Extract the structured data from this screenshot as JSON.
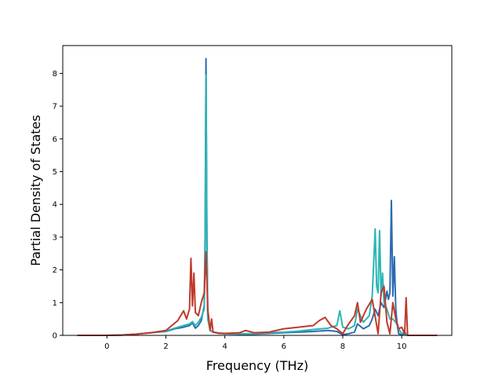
{
  "chart_data": {
    "type": "line",
    "title": "",
    "xlabel": "Frequency (THz)",
    "ylabel": "Partial Density of States",
    "xlim": [
      -1.5,
      11.7
    ],
    "ylim": [
      0,
      8.85
    ],
    "xticks": [
      0,
      2,
      4,
      6,
      8,
      10
    ],
    "yticks": [
      0,
      1,
      2,
      3,
      4,
      5,
      6,
      7,
      8
    ],
    "grid": false,
    "legend": "none",
    "series": [
      {
        "color": "#2b6cb0",
        "x": [
          -1.0,
          0.0,
          0.5,
          1.0,
          1.5,
          2.0,
          2.3,
          2.6,
          2.8,
          2.9,
          3.0,
          3.1,
          3.2,
          3.3,
          3.33,
          3.36,
          3.39,
          3.42,
          3.5,
          3.6,
          3.8,
          4.0,
          4.5,
          5.0,
          5.5,
          6.0,
          6.5,
          7.0,
          7.5,
          7.8,
          8.0,
          8.2,
          8.4,
          8.5,
          8.7,
          8.9,
          9.0,
          9.1,
          9.2,
          9.3,
          9.4,
          9.5,
          9.55,
          9.6,
          9.65,
          9.7,
          9.75,
          9.8,
          9.85,
          9.9,
          10.0,
          10.1,
          10.2,
          11.2
        ],
        "values": [
          0.0,
          0.0,
          0.01,
          0.04,
          0.08,
          0.12,
          0.2,
          0.25,
          0.3,
          0.38,
          0.22,
          0.3,
          0.45,
          0.9,
          3.0,
          8.45,
          3.2,
          0.6,
          0.15,
          0.1,
          0.06,
          0.05,
          0.04,
          0.04,
          0.06,
          0.08,
          0.1,
          0.12,
          0.15,
          0.12,
          0.02,
          0.05,
          0.1,
          0.35,
          0.2,
          0.3,
          0.5,
          0.8,
          0.6,
          1.0,
          0.85,
          1.35,
          1.1,
          1.3,
          4.12,
          1.2,
          2.4,
          0.8,
          0.3,
          0.05,
          0.02,
          0.05,
          0.0,
          0.0
        ]
      },
      {
        "color": "#2cb5b5",
        "x": [
          -1.0,
          0.0,
          0.5,
          1.0,
          1.5,
          2.0,
          2.3,
          2.6,
          2.8,
          2.9,
          3.0,
          3.1,
          3.2,
          3.3,
          3.33,
          3.36,
          3.39,
          3.42,
          3.5,
          3.6,
          3.8,
          4.0,
          4.5,
          5.0,
          5.5,
          6.0,
          6.5,
          7.0,
          7.5,
          7.8,
          7.9,
          8.0,
          8.2,
          8.4,
          8.5,
          8.7,
          8.9,
          9.0,
          9.1,
          9.15,
          9.2,
          9.25,
          9.3,
          9.35,
          9.4,
          9.5,
          9.6,
          9.7,
          9.8,
          9.9,
          10.0,
          10.1,
          10.2,
          11.2
        ],
        "values": [
          0.0,
          0.0,
          0.01,
          0.04,
          0.08,
          0.13,
          0.22,
          0.3,
          0.35,
          0.42,
          0.3,
          0.4,
          0.55,
          0.8,
          2.4,
          7.95,
          2.8,
          0.5,
          0.15,
          0.1,
          0.07,
          0.06,
          0.05,
          0.05,
          0.08,
          0.1,
          0.13,
          0.18,
          0.22,
          0.3,
          0.75,
          0.25,
          0.2,
          0.3,
          0.8,
          0.4,
          0.6,
          1.2,
          3.25,
          1.5,
          1.3,
          3.2,
          1.2,
          1.9,
          1.0,
          0.8,
          0.5,
          0.5,
          0.4,
          0.2,
          0.05,
          0.1,
          0.0,
          0.0
        ]
      },
      {
        "color": "#c0392b",
        "x": [
          -1.0,
          0.0,
          0.5,
          1.0,
          1.5,
          2.0,
          2.2,
          2.4,
          2.6,
          2.7,
          2.8,
          2.85,
          2.9,
          2.95,
          3.0,
          3.1,
          3.2,
          3.3,
          3.36,
          3.42,
          3.5,
          3.55,
          3.6,
          3.8,
          4.0,
          4.5,
          4.7,
          5.0,
          5.5,
          6.0,
          6.5,
          7.0,
          7.2,
          7.4,
          7.6,
          7.8,
          8.0,
          8.2,
          8.4,
          8.5,
          8.6,
          8.8,
          9.0,
          9.2,
          9.3,
          9.4,
          9.5,
          9.6,
          9.7,
          9.8,
          9.9,
          10.0,
          10.1,
          10.15,
          10.2,
          11.2
        ],
        "values": [
          0.0,
          0.0,
          0.01,
          0.04,
          0.08,
          0.15,
          0.3,
          0.45,
          0.75,
          0.5,
          0.8,
          2.35,
          0.9,
          1.9,
          0.7,
          0.6,
          1.0,
          1.3,
          2.55,
          0.8,
          0.15,
          0.5,
          0.1,
          0.07,
          0.06,
          0.08,
          0.15,
          0.08,
          0.1,
          0.2,
          0.25,
          0.3,
          0.45,
          0.55,
          0.3,
          0.2,
          0.05,
          0.35,
          0.6,
          1.0,
          0.4,
          0.8,
          1.1,
          0.05,
          1.3,
          1.5,
          0.4,
          0.05,
          1.0,
          0.5,
          0.2,
          0.25,
          0.05,
          1.15,
          0.0,
          0.0
        ]
      }
    ]
  }
}
